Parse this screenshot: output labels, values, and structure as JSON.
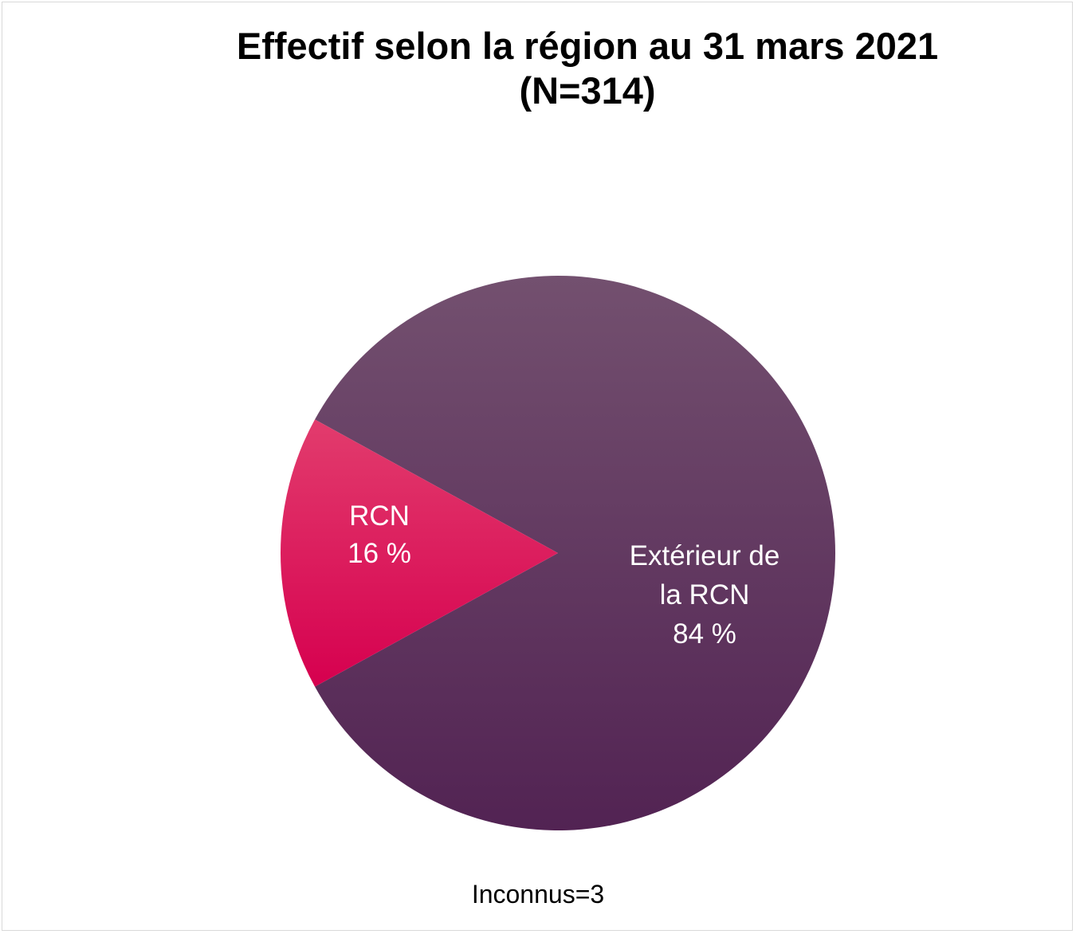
{
  "chart_data": {
    "type": "pie",
    "title_line1": "Effectif selon la région au 31 mars 2021",
    "title_line2": "(N=314)",
    "slices": [
      {
        "label": "RCN",
        "value": 16,
        "value_label": "16 %",
        "color_top": "#e23c6d",
        "color_bottom": "#d6004f"
      },
      {
        "label": "Extérieur de la RCN",
        "label_lines": [
          "Extérieur de",
          "la RCN"
        ],
        "value": 84,
        "value_label": "84 %",
        "color_top": "#73506f",
        "color_bottom": "#522353"
      }
    ],
    "footnote": "Inconnus=3"
  }
}
